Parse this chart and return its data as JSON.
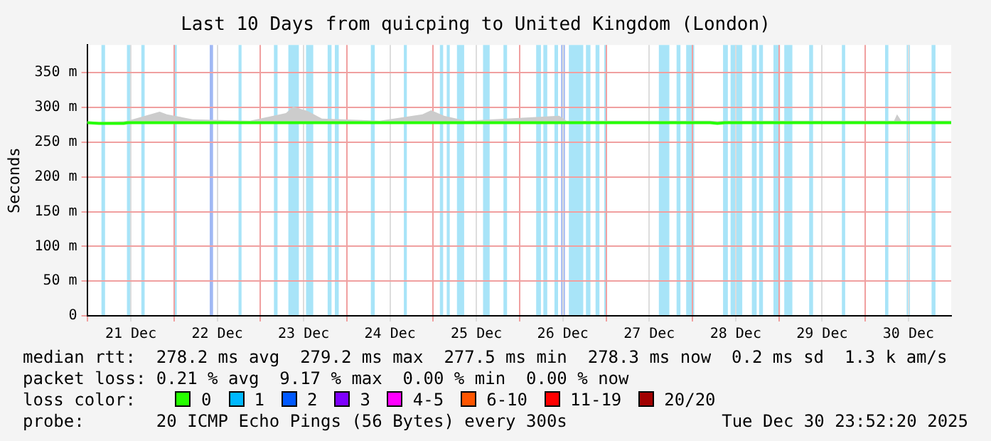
{
  "chart_data": {
    "type": "line",
    "title": "Last 10 Days from quicping to United Kingdom (London)",
    "ylabel": "Seconds",
    "legend_title": "loss color:",
    "legend": "bottom",
    "grid": true,
    "marker": "none",
    "line_style": "solid",
    "xlim": [
      "2025-12-20T23:52",
      "2025-12-30T23:52"
    ],
    "xticks": [
      {
        "value": "2025-12-21T00:00",
        "label": null
      },
      {
        "value": "2025-12-21T12:00",
        "label": "21 Dec"
      },
      {
        "value": "2025-12-22T00:00",
        "label": null
      },
      {
        "value": "2025-12-22T12:00",
        "label": "22 Dec"
      },
      {
        "value": "2025-12-23T00:00",
        "label": null
      },
      {
        "value": "2025-12-23T12:00",
        "label": "23 Dec"
      },
      {
        "value": "2025-12-24T00:00",
        "label": null
      },
      {
        "value": "2025-12-24T12:00",
        "label": "24 Dec"
      },
      {
        "value": "2025-12-25T00:00",
        "label": null
      },
      {
        "value": "2025-12-25T12:00",
        "label": "25 Dec"
      },
      {
        "value": "2025-12-26T00:00",
        "label": null
      },
      {
        "value": "2025-12-26T12:00",
        "label": "26 Dec"
      },
      {
        "value": "2025-12-27T00:00",
        "label": null
      },
      {
        "value": "2025-12-27T12:00",
        "label": "27 Dec"
      },
      {
        "value": "2025-12-28T00:00",
        "label": null
      },
      {
        "value": "2025-12-28T12:00",
        "label": "28 Dec"
      },
      {
        "value": "2025-12-29T00:00",
        "label": null
      },
      {
        "value": "2025-12-29T12:00",
        "label": "29 Dec"
      },
      {
        "value": "2025-12-30T00:00",
        "label": null
      },
      {
        "value": "2025-12-30T12:00",
        "label": "30 Dec"
      }
    ],
    "ylim": [
      0,
      390
    ],
    "yticks": [
      {
        "value": 0,
        "label": "0"
      },
      {
        "value": 50,
        "label": "50 m"
      },
      {
        "value": 100,
        "label": "100 m"
      },
      {
        "value": 150,
        "label": "150 m"
      },
      {
        "value": 200,
        "label": "200 m"
      },
      {
        "value": 250,
        "label": "250 m"
      },
      {
        "value": 300,
        "label": "300 m"
      },
      {
        "value": 350,
        "label": "350 m"
      }
    ],
    "x": [
      "2025-12-20T23:52",
      "2025-12-21T03:10",
      "2025-12-21T10:00",
      "2025-12-21T11:10",
      "2025-12-21T20:00",
      "2025-12-21T22:00",
      "2025-12-22T05:10",
      "2025-12-22T21:05",
      "2025-12-23T07:05",
      "2025-12-23T09:05",
      "2025-12-23T13:05",
      "2025-12-23T17:05",
      "2025-12-24T09:05",
      "2025-12-24T21:00",
      "2025-12-24T23:25",
      "2025-12-25T03:00",
      "2025-12-25T09:00",
      "2025-12-26T11:00",
      "2025-12-26T13:00",
      "2025-12-28T04:55",
      "2025-12-28T06:55",
      "2025-12-28T08:55",
      "2025-12-30T08:00",
      "2025-12-30T08:50",
      "2025-12-30T10:00",
      "2025-12-30T23:52"
    ],
    "series": [
      {
        "name": "0",
        "color": "#26ff00",
        "values": [
          278,
          277,
          277,
          278,
          278,
          278,
          278,
          278,
          278,
          278,
          278,
          278,
          278,
          278,
          278,
          278,
          278,
          278,
          278,
          278,
          277,
          278,
          278,
          278,
          278,
          278
        ],
        "lower": [
          277,
          276,
          276,
          277,
          277,
          277,
          277,
          277,
          277,
          277,
          277,
          277,
          277,
          277,
          277,
          277,
          277,
          277,
          277,
          277,
          276,
          277,
          277,
          277,
          277,
          277
        ],
        "upper": [
          280,
          279,
          280,
          281,
          294,
          290,
          283,
          281,
          292,
          301,
          295,
          284,
          281,
          290,
          296,
          288,
          281,
          288,
          281,
          281,
          280,
          281,
          281,
          290,
          281,
          281
        ]
      },
      {
        "name": "1",
        "color": "#00b8ff",
        "values": [
          null,
          null,
          null,
          null,
          null,
          null,
          null,
          null,
          null,
          null,
          null,
          null,
          null,
          null,
          null,
          null,
          null,
          null,
          null,
          null,
          null,
          null,
          null,
          null,
          null,
          null
        ]
      },
      {
        "name": "2",
        "color": "#0059ff",
        "values": [
          null,
          null,
          null,
          null,
          null,
          null,
          null,
          null,
          null,
          null,
          null,
          null,
          null,
          null,
          null,
          null,
          null,
          null,
          null,
          null,
          null,
          null,
          null,
          null,
          null,
          null
        ]
      },
      {
        "name": "3",
        "color": "#7e00ff",
        "values": [
          null,
          null,
          null,
          null,
          null,
          null,
          null,
          null,
          null,
          null,
          null,
          null,
          null,
          null,
          null,
          null,
          null,
          null,
          null,
          null,
          null,
          null,
          null,
          null,
          null,
          null
        ]
      },
      {
        "name": "4-5",
        "color": "#ff00fe",
        "values": [
          null,
          null,
          null,
          null,
          null,
          null,
          null,
          null,
          null,
          null,
          null,
          null,
          null,
          null,
          null,
          null,
          null,
          null,
          null,
          null,
          null,
          null,
          null,
          null,
          null,
          null
        ]
      },
      {
        "name": "6-10",
        "color": "#ff5500",
        "values": [
          null,
          null,
          null,
          null,
          null,
          null,
          null,
          null,
          null,
          null,
          null,
          null,
          null,
          null,
          null,
          null,
          null,
          null,
          null,
          null,
          null,
          null,
          null,
          null,
          null,
          null
        ]
      },
      {
        "name": "11-19",
        "color": "#ff0000",
        "values": [
          null,
          null,
          null,
          null,
          null,
          null,
          null,
          null,
          null,
          null,
          null,
          null,
          null,
          null,
          null,
          null,
          null,
          null,
          null,
          null,
          null,
          null,
          null,
          null,
          null,
          null
        ]
      },
      {
        "name": "20/20",
        "color": "#a10000",
        "values": [
          null,
          null,
          null,
          null,
          null,
          null,
          null,
          null,
          null,
          null,
          null,
          null,
          null,
          null,
          null,
          null,
          null,
          null,
          null,
          null,
          null,
          null,
          null,
          null,
          null,
          null
        ]
      }
    ],
    "bands": [
      {
        "axis": "x",
        "from": "2025-12-21T03:50",
        "to": "2025-12-21T04:50",
        "color": "#a8e4f8"
      },
      {
        "axis": "x",
        "from": "2025-12-21T10:55",
        "to": "2025-12-21T11:50",
        "color": "#a8e4f8"
      },
      {
        "axis": "x",
        "from": "2025-12-21T14:55",
        "to": "2025-12-21T15:50",
        "color": "#a8e4f8"
      },
      {
        "axis": "x",
        "from": "2025-12-21T23:50",
        "to": "2025-12-22T00:45",
        "color": "#a8e4f8"
      },
      {
        "axis": "x",
        "from": "2025-12-22T09:55",
        "to": "2025-12-22T10:50",
        "color": "#a0b8f4"
      },
      {
        "axis": "x",
        "from": "2025-12-22T17:55",
        "to": "2025-12-22T18:45",
        "color": "#a8e4f8"
      },
      {
        "axis": "x",
        "from": "2025-12-23T03:45",
        "to": "2025-12-23T04:45",
        "color": "#a8e4f8"
      },
      {
        "axis": "x",
        "from": "2025-12-23T07:45",
        "to": "2025-12-23T10:40",
        "color": "#a8e4f8"
      },
      {
        "axis": "x",
        "from": "2025-12-23T12:40",
        "to": "2025-12-23T14:40",
        "color": "#a8e4f8"
      },
      {
        "axis": "x",
        "from": "2025-12-23T18:40",
        "to": "2025-12-23T19:45",
        "color": "#a8e4f8"
      },
      {
        "axis": "x",
        "from": "2025-12-23T20:40",
        "to": "2025-12-23T21:45",
        "color": "#a8e4f8"
      },
      {
        "axis": "x",
        "from": "2025-12-24T06:40",
        "to": "2025-12-24T07:45",
        "color": "#a8e4f8"
      },
      {
        "axis": "x",
        "from": "2025-12-24T15:50",
        "to": "2025-12-24T16:40",
        "color": "#a8e4f8"
      },
      {
        "axis": "x",
        "from": "2025-12-25T01:50",
        "to": "2025-12-25T02:45",
        "color": "#a8e4f8"
      },
      {
        "axis": "x",
        "from": "2025-12-25T03:45",
        "to": "2025-12-25T04:35",
        "color": "#a8e4f8"
      },
      {
        "axis": "x",
        "from": "2025-12-25T06:35",
        "to": "2025-12-25T08:35",
        "color": "#a8e4f8"
      },
      {
        "axis": "x",
        "from": "2025-12-25T13:50",
        "to": "2025-12-25T15:40",
        "color": "#a8e4f8"
      },
      {
        "axis": "x",
        "from": "2025-12-25T19:30",
        "to": "2025-12-25T20:30",
        "color": "#a8e4f8"
      },
      {
        "axis": "x",
        "from": "2025-12-26T04:35",
        "to": "2025-12-26T05:55",
        "color": "#a8e4f8"
      },
      {
        "axis": "x",
        "from": "2025-12-26T06:35",
        "to": "2025-12-26T07:40",
        "color": "#a8e4f8"
      },
      {
        "axis": "x",
        "from": "2025-12-26T09:40",
        "to": "2025-12-26T10:40",
        "color": "#a8e4f8"
      },
      {
        "axis": "x",
        "from": "2025-12-26T11:30",
        "to": "2025-12-26T12:35",
        "color": "#a0b8f4"
      },
      {
        "axis": "x",
        "from": "2025-12-26T13:40",
        "to": "2025-12-26T17:40",
        "color": "#a8e4f8"
      },
      {
        "axis": "x",
        "from": "2025-12-26T18:25",
        "to": "2025-12-26T19:40",
        "color": "#a8e4f8"
      },
      {
        "axis": "x",
        "from": "2025-12-26T21:05",
        "to": "2025-12-26T22:10",
        "color": "#a8e4f8"
      },
      {
        "axis": "x",
        "from": "2025-12-26T23:30",
        "to": "2025-12-27T00:15",
        "color": "#a8e4f8"
      },
      {
        "axis": "x",
        "from": "2025-12-27T14:40",
        "to": "2025-12-27T17:35",
        "color": "#a8e4f8"
      },
      {
        "axis": "x",
        "from": "2025-12-27T19:35",
        "to": "2025-12-27T20:40",
        "color": "#a8e4f8"
      },
      {
        "axis": "x",
        "from": "2025-12-27T22:15",
        "to": "2025-12-28T00:30",
        "color": "#a8e4f8"
      },
      {
        "axis": "x",
        "from": "2025-12-28T08:30",
        "to": "2025-12-28T09:50",
        "color": "#a8e4f8"
      },
      {
        "axis": "x",
        "from": "2025-12-28T10:35",
        "to": "2025-12-28T13:50",
        "color": "#a8e4f8"
      },
      {
        "axis": "x",
        "from": "2025-12-28T16:30",
        "to": "2025-12-28T17:50",
        "color": "#a8e4f8"
      },
      {
        "axis": "x",
        "from": "2025-12-28T18:30",
        "to": "2025-12-28T19:35",
        "color": "#a8e4f8"
      },
      {
        "axis": "x",
        "from": "2025-12-28T22:30",
        "to": "2025-12-29T00:20",
        "color": "#a8e4f8"
      },
      {
        "axis": "x",
        "from": "2025-12-29T01:30",
        "to": "2025-12-29T03:45",
        "color": "#a8e4f8"
      },
      {
        "axis": "x",
        "from": "2025-12-29T08:25",
        "to": "2025-12-29T09:30",
        "color": "#a8e4f8"
      },
      {
        "axis": "x",
        "from": "2025-12-29T17:30",
        "to": "2025-12-29T18:25",
        "color": "#a8e4f8"
      },
      {
        "axis": "x",
        "from": "2025-12-30T05:30",
        "to": "2025-12-30T06:25",
        "color": "#a8e4f8"
      },
      {
        "axis": "x",
        "from": "2025-12-30T11:30",
        "to": "2025-12-30T12:25",
        "color": "#a8e4f8"
      },
      {
        "axis": "x",
        "from": "2025-12-30T18:25",
        "to": "2025-12-30T19:30",
        "color": "#a8e4f8"
      }
    ],
    "annotations": [
      "median rtt:  278.2 ms avg  279.2 ms max  277.5 ms min  278.3 ms now  0.2 ms sd  1.3 k am/s",
      "packet loss: 0.21 % avg  9.17 % max  0.00 % min  0.00 % now",
      "probe:       20 ICMP Echo Pings (56 Bytes) every 300s",
      "Tue Dec 30 23:52:20 2025"
    ]
  }
}
